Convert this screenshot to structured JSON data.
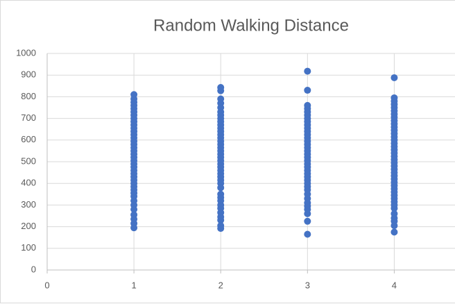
{
  "chart_data": {
    "type": "scatter",
    "title": "Random Walking Distance",
    "xlim": [
      0,
      4.7
    ],
    "xticks": [
      0,
      1,
      2,
      3,
      4
    ],
    "ylim": [
      0,
      1000
    ],
    "yticks": [
      0,
      100,
      200,
      300,
      400,
      500,
      600,
      700,
      800,
      900,
      1000
    ],
    "grid": true,
    "series": [
      {
        "color": "#4472c4",
        "x": [
          1,
          1,
          1,
          1,
          1,
          1,
          1,
          1,
          1,
          1,
          1,
          1,
          1,
          1,
          1,
          1,
          1,
          1,
          1,
          1,
          1,
          1,
          1,
          1,
          1,
          1,
          1,
          1,
          1,
          1,
          1,
          1,
          1,
          1,
          1,
          1,
          1,
          1,
          1
        ],
        "values": [
          810,
          790,
          775,
          760,
          745,
          730,
          715,
          700,
          685,
          670,
          655,
          640,
          625,
          610,
          595,
          580,
          565,
          550,
          535,
          520,
          505,
          490,
          475,
          460,
          445,
          430,
          415,
          400,
          385,
          370,
          355,
          340,
          320,
          300,
          280,
          255,
          235,
          215,
          195
        ]
      },
      {
        "color": "#4472c4",
        "x": [
          2,
          2,
          2,
          2,
          2,
          2,
          2,
          2,
          2,
          2,
          2,
          2,
          2,
          2,
          2,
          2,
          2,
          2,
          2,
          2,
          2,
          2,
          2,
          2,
          2,
          2,
          2,
          2,
          2,
          2,
          2,
          2,
          2,
          2,
          2,
          2,
          2,
          2,
          2
        ],
        "values": [
          843,
          828,
          790,
          770,
          750,
          730,
          715,
          700,
          685,
          670,
          655,
          640,
          625,
          610,
          595,
          580,
          565,
          550,
          535,
          520,
          505,
          490,
          475,
          460,
          445,
          430,
          415,
          400,
          380,
          350,
          335,
          320,
          300,
          285,
          265,
          245,
          230,
          205,
          192
        ]
      },
      {
        "color": "#4472c4",
        "x": [
          3,
          3,
          3,
          3,
          3,
          3,
          3,
          3,
          3,
          3,
          3,
          3,
          3,
          3,
          3,
          3,
          3,
          3,
          3,
          3,
          3,
          3,
          3,
          3,
          3,
          3,
          3,
          3,
          3,
          3,
          3,
          3,
          3,
          3,
          3,
          3,
          3
        ],
        "values": [
          918,
          830,
          760,
          745,
          730,
          715,
          700,
          685,
          670,
          655,
          640,
          625,
          610,
          595,
          580,
          565,
          550,
          535,
          520,
          505,
          490,
          475,
          460,
          445,
          430,
          415,
          400,
          385,
          370,
          350,
          330,
          310,
          295,
          280,
          260,
          225,
          165
        ]
      },
      {
        "color": "#4472c4",
        "x": [
          4,
          4,
          4,
          4,
          4,
          4,
          4,
          4,
          4,
          4,
          4,
          4,
          4,
          4,
          4,
          4,
          4,
          4,
          4,
          4,
          4,
          4,
          4,
          4,
          4,
          4,
          4,
          4,
          4,
          4,
          4,
          4,
          4,
          4,
          4,
          4,
          4,
          4,
          4,
          4,
          4
        ],
        "values": [
          888,
          795,
          780,
          765,
          750,
          735,
          720,
          705,
          690,
          675,
          660,
          645,
          630,
          615,
          600,
          585,
          570,
          555,
          540,
          525,
          510,
          495,
          480,
          465,
          450,
          435,
          420,
          405,
          390,
          375,
          360,
          345,
          330,
          315,
          300,
          285,
          260,
          240,
          225,
          205,
          175
        ]
      }
    ]
  }
}
